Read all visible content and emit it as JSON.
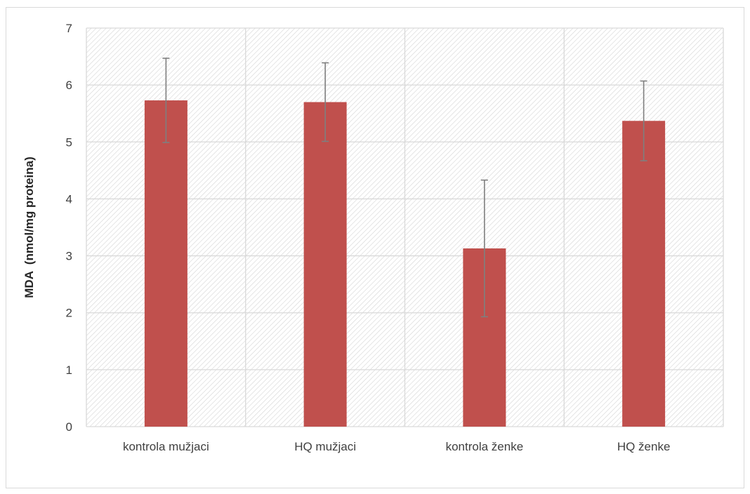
{
  "chart_data": {
    "type": "bar",
    "title": "",
    "xlabel": "",
    "ylabel": "MDA  (nmol/mg proteina)",
    "categories": [
      "kontrola mužjaci",
      "HQ mužjaci",
      "kontrola ženke",
      "HQ ženke"
    ],
    "series": [
      {
        "values": [
          5.73,
          5.7,
          3.13,
          5.37
        ],
        "error_low": [
          4.99,
          5.01,
          1.93,
          4.67
        ],
        "error_high": [
          6.47,
          6.39,
          4.33,
          6.07
        ]
      }
    ],
    "ylim": [
      0,
      7
    ],
    "yticks": [
      "0",
      "1",
      "2",
      "3",
      "4",
      "5",
      "6",
      "7"
    ],
    "grid": true,
    "plot_background": "diagonal-hatch",
    "colors": {
      "bar": "#c0504d",
      "error_bar": "#7f7f7f",
      "grid": "#d9d9d9",
      "hatch": "#d4d4d4"
    }
  }
}
